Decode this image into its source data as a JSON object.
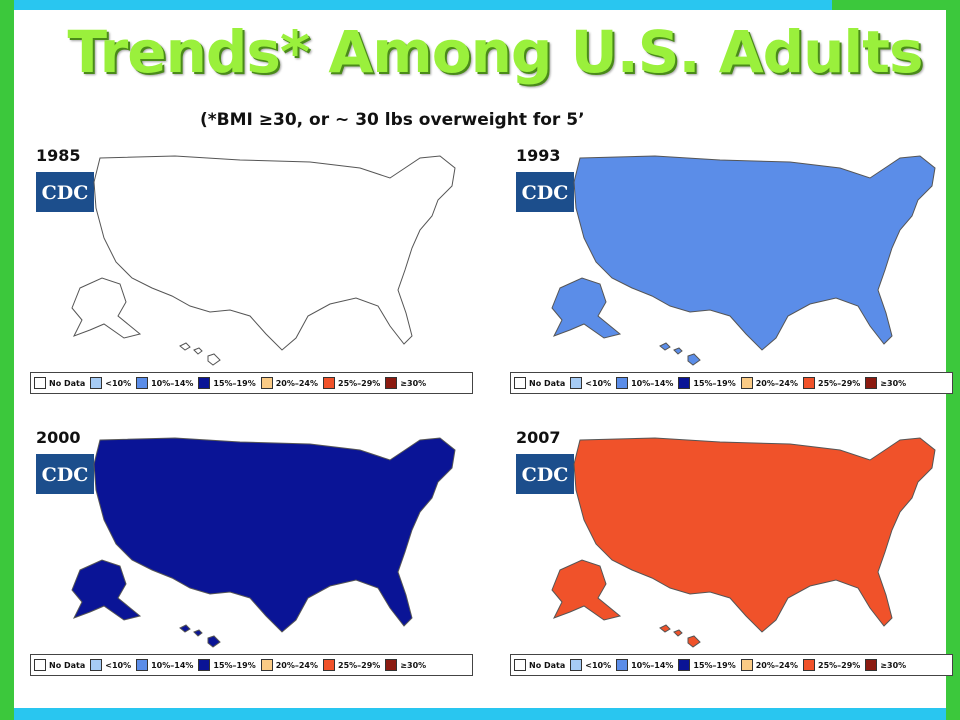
{
  "title": "Trends* Among U.S. Adults",
  "subtitle": "(*BMI ≥30, or ~ 30 lbs overweight for 5’",
  "legend": [
    {
      "label": "No Data",
      "color": "#ffffff"
    },
    {
      "label": "<10%",
      "color": "#a6cbf5"
    },
    {
      "label": "10%–14%",
      "color": "#5b8de8"
    },
    {
      "label": "15%–19%",
      "color": "#0a1496"
    },
    {
      "label": "20%–24%",
      "color": "#fbcb85"
    },
    {
      "label": "25%–29%",
      "color": "#f0522a"
    },
    {
      "label": "≥30%",
      "color": "#8b1a10"
    }
  ],
  "maps": [
    {
      "year": "1985",
      "logo": "CDC",
      "base_band": "No Data"
    },
    {
      "year": "1993",
      "logo": "CDC",
      "base_band": "10%–14%"
    },
    {
      "year": "2000",
      "logo": "CDC",
      "base_band": "15%–19%"
    },
    {
      "year": "2007",
      "logo": "CDC",
      "base_band": "25%–29%"
    }
  ],
  "colors": {
    "title_green": "#9af03c",
    "frame_blue": "#29c6f0",
    "frame_green": "#3cc83c"
  }
}
